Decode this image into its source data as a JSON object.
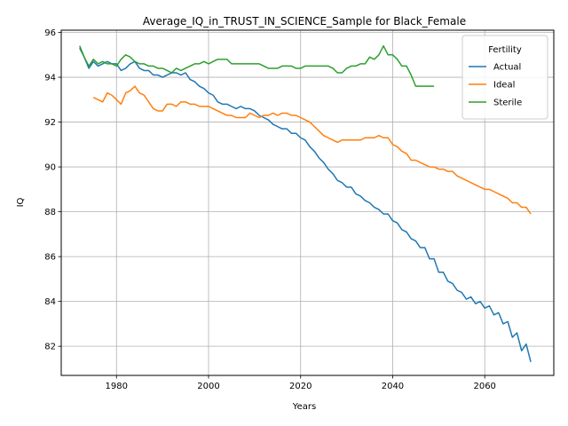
{
  "chart_data": {
    "type": "line",
    "title": "Average_IQ_in_TRUST_IN_SCIENCE_Sample for Black_Female",
    "xlabel": "Years",
    "ylabel": "IQ",
    "xlim": [
      1968,
      2075
    ],
    "ylim": [
      80.7,
      96.1
    ],
    "x_ticks": [
      1980,
      2000,
      2020,
      2040,
      2060
    ],
    "y_ticks": [
      82,
      84,
      86,
      88,
      90,
      92,
      94,
      96
    ],
    "grid": true,
    "legend": {
      "title": "Fertility",
      "placement": "top-right"
    },
    "series": [
      {
        "name": "Actual",
        "color": "#1f77b4",
        "x": [
          1972,
          1973,
          1974,
          1975,
          1976,
          1977,
          1978,
          1979,
          1980,
          1981,
          1982,
          1983,
          1984,
          1985,
          1986,
          1987,
          1988,
          1989,
          1990,
          1991,
          1992,
          1993,
          1994,
          1995,
          1996,
          1997,
          1998,
          1999,
          2000,
          2001,
          2002,
          2003,
          2004,
          2005,
          2006,
          2007,
          2008,
          2009,
          2010,
          2011,
          2012,
          2013,
          2014,
          2015,
          2016,
          2017,
          2018,
          2019,
          2020,
          2021,
          2022,
          2023,
          2024,
          2025,
          2026,
          2027,
          2028,
          2029,
          2030,
          2031,
          2032,
          2033,
          2034,
          2035,
          2036,
          2037,
          2038,
          2039,
          2040,
          2041,
          2042,
          2043,
          2044,
          2045,
          2046,
          2047,
          2048,
          2049,
          2050,
          2051,
          2052,
          2053,
          2054,
          2055,
          2056,
          2057,
          2058,
          2059,
          2060,
          2061,
          2062,
          2063,
          2064,
          2065,
          2066,
          2067,
          2068,
          2069,
          2070
        ],
        "values": [
          95.3,
          94.9,
          94.4,
          94.7,
          94.5,
          94.6,
          94.7,
          94.6,
          94.6,
          94.3,
          94.4,
          94.6,
          94.7,
          94.4,
          94.3,
          94.3,
          94.1,
          94.1,
          94.0,
          94.1,
          94.2,
          94.2,
          94.1,
          94.2,
          93.9,
          93.8,
          93.6,
          93.5,
          93.3,
          93.2,
          92.9,
          92.8,
          92.8,
          92.7,
          92.6,
          92.7,
          92.6,
          92.6,
          92.5,
          92.3,
          92.2,
          92.1,
          91.9,
          91.8,
          91.7,
          91.7,
          91.5,
          91.5,
          91.3,
          91.2,
          90.9,
          90.7,
          90.4,
          90.2,
          89.9,
          89.7,
          89.4,
          89.3,
          89.1,
          89.1,
          88.8,
          88.7,
          88.5,
          88.4,
          88.2,
          88.1,
          87.9,
          87.9,
          87.6,
          87.5,
          87.2,
          87.1,
          86.8,
          86.7,
          86.4,
          86.4,
          85.9,
          85.9,
          85.3,
          85.3,
          84.9,
          84.8,
          84.5,
          84.4,
          84.1,
          84.2,
          83.9,
          84.0,
          83.7,
          83.8,
          83.4,
          83.5,
          83.0,
          83.1,
          82.4,
          82.6,
          81.8,
          82.1,
          81.3
        ]
      },
      {
        "name": "Ideal",
        "color": "#ff7f0e",
        "x": [
          1975,
          1976,
          1977,
          1978,
          1979,
          1980,
          1981,
          1982,
          1983,
          1984,
          1985,
          1986,
          1987,
          1988,
          1989,
          1990,
          1991,
          1992,
          1993,
          1994,
          1995,
          1996,
          1997,
          1998,
          1999,
          2000,
          2001,
          2002,
          2003,
          2004,
          2005,
          2006,
          2007,
          2008,
          2009,
          2010,
          2011,
          2012,
          2013,
          2014,
          2015,
          2016,
          2017,
          2018,
          2019,
          2020,
          2021,
          2022,
          2023,
          2024,
          2025,
          2026,
          2027,
          2028,
          2029,
          2030,
          2031,
          2032,
          2033,
          2034,
          2035,
          2036,
          2037,
          2038,
          2039,
          2040,
          2041,
          2042,
          2043,
          2044,
          2045,
          2046,
          2047,
          2048,
          2049,
          2050,
          2051,
          2052,
          2053,
          2054,
          2055,
          2056,
          2057,
          2058,
          2059,
          2060,
          2061,
          2062,
          2063,
          2064,
          2065,
          2066,
          2067,
          2068,
          2069,
          2070
        ],
        "values": [
          93.1,
          93.0,
          92.9,
          93.3,
          93.2,
          93.0,
          92.8,
          93.3,
          93.4,
          93.6,
          93.3,
          93.2,
          92.9,
          92.6,
          92.5,
          92.5,
          92.8,
          92.8,
          92.7,
          92.9,
          92.9,
          92.8,
          92.8,
          92.7,
          92.7,
          92.7,
          92.6,
          92.5,
          92.4,
          92.3,
          92.3,
          92.2,
          92.2,
          92.2,
          92.4,
          92.3,
          92.2,
          92.3,
          92.3,
          92.4,
          92.3,
          92.4,
          92.4,
          92.3,
          92.3,
          92.2,
          92.1,
          92.0,
          91.8,
          91.6,
          91.4,
          91.3,
          91.2,
          91.1,
          91.2,
          91.2,
          91.2,
          91.2,
          91.2,
          91.3,
          91.3,
          91.3,
          91.4,
          91.3,
          91.3,
          91.0,
          90.9,
          90.7,
          90.6,
          90.3,
          90.3,
          90.2,
          90.1,
          90.0,
          90.0,
          89.9,
          89.9,
          89.8,
          89.8,
          89.6,
          89.5,
          89.4,
          89.3,
          89.2,
          89.1,
          89.0,
          89.0,
          88.9,
          88.8,
          88.7,
          88.6,
          88.4,
          88.4,
          88.2,
          88.2,
          87.9
        ]
      },
      {
        "name": "Sterile",
        "color": "#2ca02c",
        "x": [
          1972,
          1973,
          1974,
          1975,
          1976,
          1977,
          1978,
          1979,
          1980,
          1981,
          1982,
          1983,
          1984,
          1985,
          1986,
          1987,
          1988,
          1989,
          1990,
          1991,
          1992,
          1993,
          1994,
          1995,
          1996,
          1997,
          1998,
          1999,
          2000,
          2001,
          2002,
          2003,
          2004,
          2005,
          2006,
          2007,
          2008,
          2009,
          2010,
          2011,
          2012,
          2013,
          2014,
          2015,
          2016,
          2017,
          2018,
          2019,
          2020,
          2021,
          2022,
          2023,
          2024,
          2025,
          2026,
          2027,
          2028,
          2029,
          2030,
          2031,
          2032,
          2033,
          2034,
          2035,
          2036,
          2037,
          2038,
          2039,
          2040,
          2041,
          2042,
          2043,
          2044,
          2045,
          2046,
          2047,
          2048,
          2049
        ],
        "values": [
          95.4,
          94.9,
          94.5,
          94.8,
          94.6,
          94.7,
          94.6,
          94.6,
          94.5,
          94.8,
          95.0,
          94.9,
          94.7,
          94.6,
          94.6,
          94.5,
          94.5,
          94.4,
          94.4,
          94.3,
          94.2,
          94.4,
          94.3,
          94.4,
          94.5,
          94.6,
          94.6,
          94.7,
          94.6,
          94.7,
          94.8,
          94.8,
          94.8,
          94.6,
          94.6,
          94.6,
          94.6,
          94.6,
          94.6,
          94.6,
          94.5,
          94.4,
          94.4,
          94.4,
          94.5,
          94.5,
          94.5,
          94.4,
          94.4,
          94.5,
          94.5,
          94.5,
          94.5,
          94.5,
          94.5,
          94.4,
          94.2,
          94.2,
          94.4,
          94.5,
          94.5,
          94.6,
          94.6,
          94.9,
          94.8,
          95.0,
          95.4,
          95.0,
          95.0,
          94.8,
          94.5,
          94.5,
          94.1,
          93.6,
          93.6,
          93.6,
          93.6,
          93.6
        ]
      }
    ]
  }
}
